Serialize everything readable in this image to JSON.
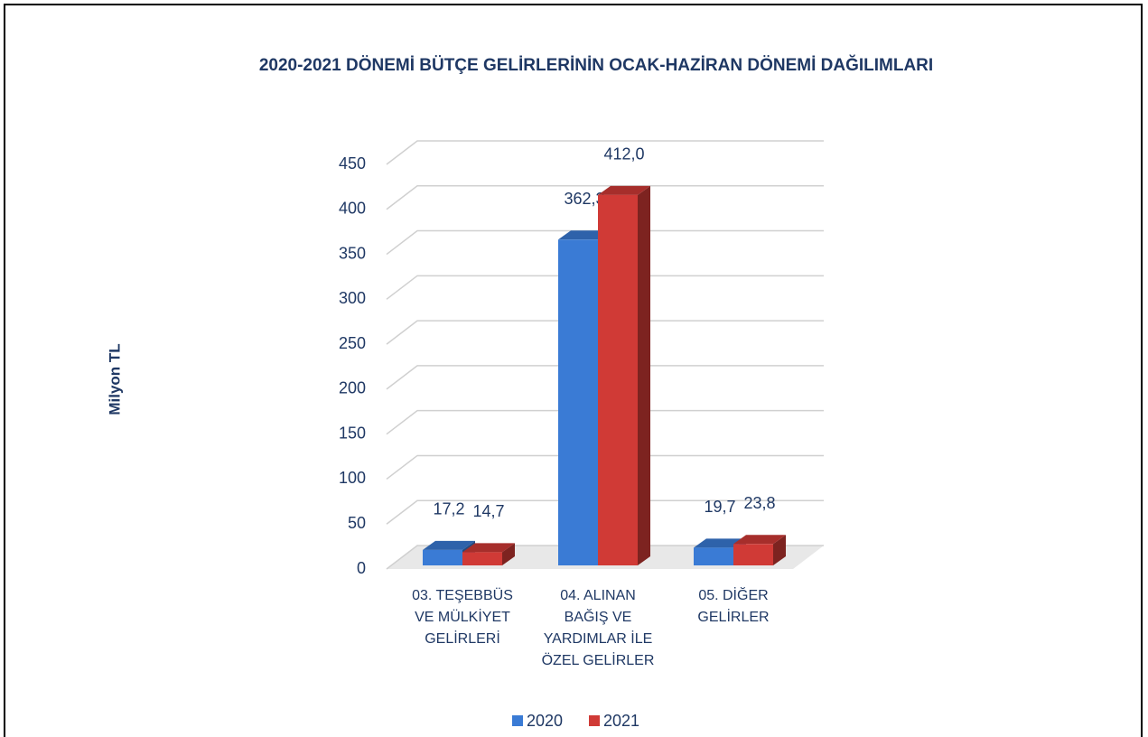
{
  "chart_data": {
    "type": "bar3d",
    "title": "2020-2021 DÖNEMİ BÜTÇE GELİRLERİNİN OCAK-HAZİRAN DÖNEMİ DAĞILIMLARI",
    "ylabel": "Milyon TL",
    "categories": [
      "03. TEŞEBBÜS VE MÜLKİYET GELİRLERİ",
      "04. ALINAN BAĞIŞ VE YARDIMLAR İLE ÖZEL GELİRLER",
      "05. DİĞER GELİRLER"
    ],
    "series": [
      {
        "name": "2020",
        "color": "#3a7bd5",
        "values": [
          17.2,
          362.3,
          19.7
        ],
        "value_labels": [
          "17,2",
          "362,3",
          "19,7"
        ]
      },
      {
        "name": "2021",
        "color": "#d03a36",
        "values": [
          14.7,
          412.0,
          23.8
        ],
        "value_labels": [
          "14,7",
          "412,0",
          "23,8"
        ]
      }
    ],
    "ylim": [
      0,
      450
    ],
    "yticks": [
      0,
      50,
      100,
      150,
      200,
      250,
      300,
      350,
      400,
      450
    ],
    "grid": true,
    "legend": "bottom"
  }
}
